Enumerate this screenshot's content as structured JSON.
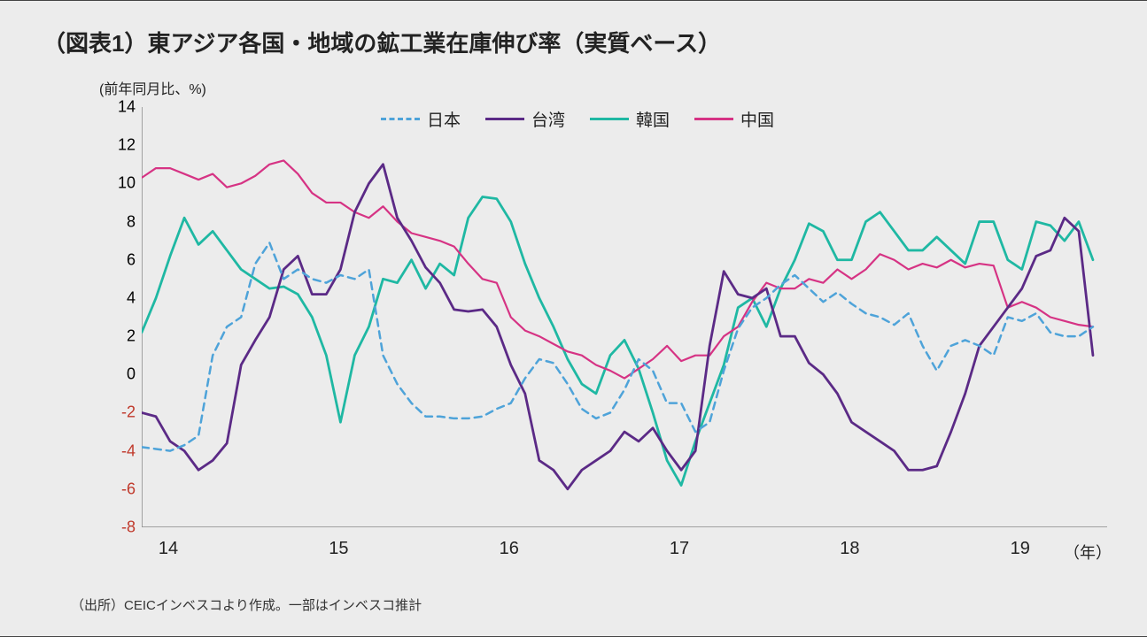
{
  "title": "（図表1）東アジア各国・地域の鉱工業在庫伸び率（実質ベース）",
  "y_unit_label": "(前年同月比、%)",
  "x_unit_label": "（年）",
  "source": "（出所）CEICインベスコより作成。一部はインベスコ推計",
  "chart": {
    "type": "line",
    "background_color": "#ececec",
    "grid": false,
    "axis_line_color": "#888888",
    "y": {
      "min": -8,
      "max": 14,
      "tick_step": 2,
      "ticks": [
        -8,
        -6,
        -4,
        -2,
        0,
        2,
        4,
        6,
        8,
        10,
        12,
        14
      ],
      "neg_label_color": "#c0392b",
      "label_fontsize": 18
    },
    "x": {
      "min": 0,
      "max": 68,
      "ticks_at": [
        0,
        12,
        24,
        36,
        48,
        60
      ],
      "tick_labels": [
        "14",
        "15",
        "16",
        "17",
        "18",
        "19"
      ],
      "label_fontsize": 20
    },
    "legend": {
      "position": "top-center",
      "fontsize": 19,
      "items": [
        {
          "key": "japan",
          "label": "日本",
          "color": "#4ea3d9",
          "dash": "dashed",
          "width": 2.5
        },
        {
          "key": "taiwan",
          "label": "台湾",
          "color": "#5b2a86",
          "dash": "solid",
          "width": 2.8
        },
        {
          "key": "korea",
          "label": "韓国",
          "color": "#1fb8a3",
          "dash": "solid",
          "width": 2.8
        },
        {
          "key": "china",
          "label": "中国",
          "color": "#d63384",
          "dash": "solid",
          "width": 2.2
        }
      ]
    },
    "series": {
      "japan": {
        "label": "日本",
        "color": "#4ea3d9",
        "dash": "dashed",
        "width": 2.5,
        "values": [
          -3.8,
          -3.9,
          -4.0,
          -3.7,
          -3.2,
          1.0,
          2.5,
          3.0,
          5.8,
          6.9,
          5.0,
          5.5,
          5.0,
          4.8,
          5.2,
          5.0,
          5.5,
          1.0,
          -0.5,
          -1.5,
          -2.2,
          -2.2,
          -2.3,
          -2.3,
          -2.2,
          -1.8,
          -1.5,
          -0.2,
          0.8,
          0.6,
          -0.5,
          -1.8,
          -2.3,
          -2.0,
          -0.8,
          0.8,
          0.2,
          -1.5,
          -1.5,
          -3.0,
          -2.5,
          0.2,
          2.4,
          3.5,
          4.0,
          4.7,
          5.2,
          4.5,
          3.8,
          4.3,
          3.7,
          3.2,
          3.0,
          2.6,
          3.2,
          1.5,
          0.2,
          1.5,
          1.8,
          1.5,
          1.0,
          3.0,
          2.8,
          3.2,
          2.2,
          2.0,
          2.0,
          2.5
        ]
      },
      "taiwan": {
        "label": "台湾",
        "color": "#5b2a86",
        "dash": "solid",
        "width": 2.8,
        "values": [
          -2.0,
          -2.2,
          -3.5,
          -4.0,
          -5.0,
          -4.5,
          -3.6,
          0.5,
          1.8,
          3.0,
          5.5,
          6.2,
          4.2,
          4.2,
          5.5,
          8.5,
          10.0,
          11.0,
          8.2,
          7.0,
          5.6,
          4.8,
          3.4,
          3.3,
          3.4,
          2.5,
          0.5,
          -1.0,
          -4.5,
          -5.0,
          -6.0,
          -5.0,
          -4.5,
          -4.0,
          -3.0,
          -3.5,
          -2.8,
          -4.0,
          -5.0,
          -4.0,
          1.5,
          5.4,
          4.2,
          4.0,
          4.5,
          2.0,
          2.0,
          0.6,
          0.0,
          -1.0,
          -2.5,
          -3.0,
          -3.5,
          -4.0,
          -5.0,
          -5.0,
          -4.8,
          -3.0,
          -1.0,
          1.5,
          2.5,
          3.5,
          4.5,
          6.2,
          6.5,
          8.2,
          7.5,
          1.0
        ]
      },
      "korea": {
        "label": "韓国",
        "color": "#1fb8a3",
        "dash": "solid",
        "width": 2.8,
        "values": [
          2.2,
          4.0,
          6.2,
          8.2,
          6.8,
          7.5,
          6.5,
          5.5,
          5.0,
          4.5,
          4.6,
          4.2,
          3.0,
          1.0,
          -2.5,
          1.0,
          2.5,
          5.0,
          4.8,
          6.0,
          4.5,
          5.8,
          5.2,
          8.2,
          9.3,
          9.2,
          8.0,
          5.8,
          4.0,
          2.5,
          0.8,
          -0.5,
          -1.0,
          1.0,
          1.8,
          0.3,
          -2.0,
          -4.5,
          -5.8,
          -3.5,
          -1.5,
          0.5,
          3.5,
          4.0,
          2.5,
          4.5,
          6.0,
          7.9,
          7.5,
          6.0,
          6.0,
          8.0,
          8.5,
          7.5,
          6.5,
          6.5,
          7.2,
          6.5,
          5.8,
          8.0,
          8.0,
          6.0,
          5.5,
          8.0,
          7.8,
          7.0,
          8.0,
          6.0
        ]
      },
      "china": {
        "label": "中国",
        "color": "#d63384",
        "dash": "solid",
        "width": 2.2,
        "values": [
          10.3,
          10.8,
          10.8,
          10.5,
          10.2,
          10.5,
          9.8,
          10.0,
          10.4,
          11.0,
          11.2,
          10.5,
          9.5,
          9.0,
          9.0,
          8.5,
          8.2,
          8.8,
          8.0,
          7.4,
          7.2,
          7.0,
          6.7,
          5.8,
          5.0,
          4.8,
          3.0,
          2.3,
          2.0,
          1.6,
          1.2,
          1.0,
          0.5,
          0.2,
          -0.2,
          0.3,
          0.8,
          1.5,
          0.7,
          1.0,
          1.0,
          2.0,
          2.5,
          3.8,
          4.8,
          4.5,
          4.5,
          5.0,
          4.8,
          5.5,
          5.0,
          5.5,
          6.3,
          6.0,
          5.5,
          5.8,
          5.6,
          6.0,
          5.6,
          5.8,
          5.7,
          3.5,
          3.8,
          3.5,
          3.0,
          2.8,
          2.6,
          2.5
        ]
      }
    }
  }
}
